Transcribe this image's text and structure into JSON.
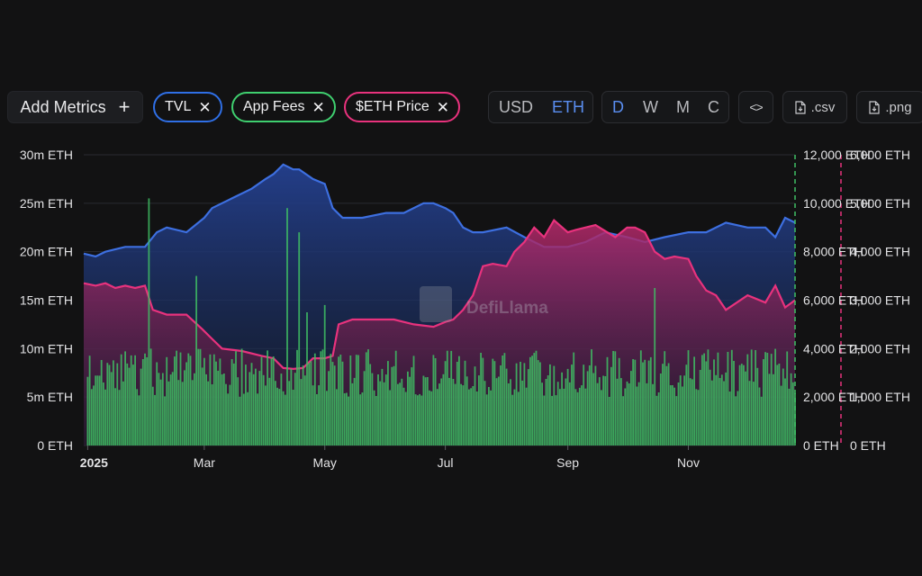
{
  "toolbar": {
    "add_metrics": {
      "label": "Add Metrics",
      "icon": "plus-icon",
      "plus": "+"
    },
    "chips": [
      {
        "label": "TVL",
        "color": "#2f6fe6",
        "x": "✕"
      },
      {
        "label": "App Fees",
        "color": "#3fcf6f",
        "x": "✕"
      },
      {
        "label": "$ETH Price",
        "color": "#e8327d",
        "x": "✕"
      }
    ],
    "denomination": {
      "options": [
        "USD",
        "ETH"
      ],
      "selected": "ETH"
    },
    "grouping": {
      "options": [
        "D",
        "W",
        "M",
        "C"
      ],
      "selected": "D"
    },
    "embed_icon": "code-icon",
    "embed_glyph": "<>",
    "csv_label": ".csv",
    "png_label": ".png"
  },
  "watermark": "DefiLlama",
  "chart_data": [
    {
      "type": "area",
      "name": "TVL",
      "y_axis": "left",
      "color": "#3d6fe0",
      "ylim": [
        0,
        30
      ],
      "y_ticks": [
        "0 ETH",
        "5m ETH",
        "10m ETH",
        "15m ETH",
        "20m ETH",
        "25m ETH",
        "30m ETH"
      ],
      "x_ticks": [
        "2025",
        "Mar",
        "May",
        "Jul",
        "Sep",
        "Nov"
      ],
      "x_tick_dates": [
        "2025-01-01",
        "2025-03-01",
        "2025-05-01",
        "2025-07-01",
        "2025-09-01",
        "2025-11-01"
      ],
      "x_range": [
        "2024-12-30",
        "2025-12-25"
      ],
      "x": [
        "2024-12-30",
        "2025-01-05",
        "2025-01-10",
        "2025-01-20",
        "2025-01-30",
        "2025-02-05",
        "2025-02-10",
        "2025-02-20",
        "2025-03-01",
        "2025-03-05",
        "2025-03-15",
        "2025-03-25",
        "2025-04-01",
        "2025-04-05",
        "2025-04-10",
        "2025-04-15",
        "2025-04-18",
        "2025-04-25",
        "2025-05-01",
        "2025-05-05",
        "2025-05-10",
        "2025-05-20",
        "2025-06-01",
        "2025-06-10",
        "2025-06-20",
        "2025-06-25",
        "2025-07-01",
        "2025-07-05",
        "2025-07-10",
        "2025-07-15",
        "2025-07-20",
        "2025-08-01",
        "2025-08-10",
        "2025-08-20",
        "2025-09-01",
        "2025-09-10",
        "2025-09-20",
        "2025-10-01",
        "2025-10-10",
        "2025-10-20",
        "2025-11-01",
        "2025-11-10",
        "2025-11-20",
        "2025-12-01",
        "2025-12-10",
        "2025-12-15",
        "2025-12-20",
        "2025-12-25"
      ],
      "values": [
        19.8,
        19.5,
        20.0,
        20.5,
        20.5,
        22.0,
        22.5,
        22.0,
        23.5,
        24.5,
        25.5,
        26.5,
        27.5,
        28.0,
        29.0,
        28.5,
        28.5,
        27.5,
        27.0,
        24.5,
        23.5,
        23.5,
        24.0,
        24.0,
        25.0,
        25.0,
        24.5,
        24.0,
        22.5,
        22.0,
        22.0,
        22.5,
        21.5,
        20.5,
        20.5,
        21.0,
        22.0,
        21.5,
        21.0,
        21.5,
        22.0,
        22.0,
        23.0,
        22.5,
        22.5,
        21.5,
        23.5,
        23.0
      ]
    },
    {
      "type": "area",
      "name": "$ETH Price",
      "y_axis": "right",
      "color": "#e8327d",
      "ylim": [
        0,
        6000
      ],
      "y_ticks": [
        "0 ETH",
        "1,000 ETH",
        "2,000 ETH",
        "3,000 ETH",
        "4,000 ETH",
        "5,000 ETH",
        "6,000 ETH"
      ],
      "x": [
        "2024-12-30",
        "2025-01-05",
        "2025-01-10",
        "2025-01-15",
        "2025-01-20",
        "2025-01-25",
        "2025-01-30",
        "2025-02-03",
        "2025-02-10",
        "2025-02-20",
        "2025-02-28",
        "2025-03-05",
        "2025-03-10",
        "2025-03-20",
        "2025-03-30",
        "2025-04-05",
        "2025-04-10",
        "2025-04-15",
        "2025-04-20",
        "2025-04-25",
        "2025-05-01",
        "2025-05-05",
        "2025-05-08",
        "2025-05-15",
        "2025-05-25",
        "2025-06-05",
        "2025-06-15",
        "2025-06-25",
        "2025-07-01",
        "2025-07-05",
        "2025-07-10",
        "2025-07-15",
        "2025-07-20",
        "2025-07-25",
        "2025-08-01",
        "2025-08-05",
        "2025-08-10",
        "2025-08-15",
        "2025-08-20",
        "2025-08-25",
        "2025-09-01",
        "2025-09-05",
        "2025-09-15",
        "2025-09-25",
        "2025-10-01",
        "2025-10-05",
        "2025-10-10",
        "2025-10-15",
        "2025-10-20",
        "2025-10-25",
        "2025-11-01",
        "2025-11-05",
        "2025-11-10",
        "2025-11-15",
        "2025-11-20",
        "2025-12-01",
        "2025-12-10",
        "2025-12-15",
        "2025-12-20",
        "2025-12-25"
      ],
      "values": [
        3350,
        3300,
        3350,
        3250,
        3300,
        3250,
        3300,
        2800,
        2700,
        2700,
        2400,
        2200,
        2000,
        1950,
        1850,
        1800,
        1600,
        1580,
        1600,
        1800,
        1800,
        1850,
        2500,
        2600,
        2600,
        2600,
        2500,
        2450,
        2550,
        2600,
        2800,
        3100,
        3700,
        3750,
        3700,
        4000,
        4200,
        4500,
        4300,
        4650,
        4400,
        4450,
        4550,
        4300,
        4500,
        4500,
        4400,
        4000,
        3850,
        3900,
        3850,
        3500,
        3200,
        3100,
        2800,
        3100,
        2950,
        3300,
        2850,
        3000
      ]
    },
    {
      "type": "bar",
      "name": "App Fees",
      "y_axis": "right_inner",
      "color": "#3fbf64",
      "ylim": [
        0,
        12000
      ],
      "y_ticks": [
        "0 ETH",
        "2,000 ETH",
        "4,000 ETH",
        "6,000 ETH",
        "8,000 ETH",
        "10,000 ETH",
        "12,000 ETH"
      ],
      "x_range": [
        "2025-01-01",
        "2025-12-25"
      ],
      "typical_range": [
        2000,
        4000
      ],
      "spikes": [
        {
          "x": "2025-02-01",
          "value": 10200
        },
        {
          "x": "2025-02-25",
          "value": 7000
        },
        {
          "x": "2025-04-12",
          "value": 9800
        },
        {
          "x": "2025-04-18",
          "value": 8800
        },
        {
          "x": "2025-04-22",
          "value": 5500
        },
        {
          "x": "2025-05-01",
          "value": 5800
        },
        {
          "x": "2025-10-15",
          "value": 6500
        }
      ]
    }
  ]
}
